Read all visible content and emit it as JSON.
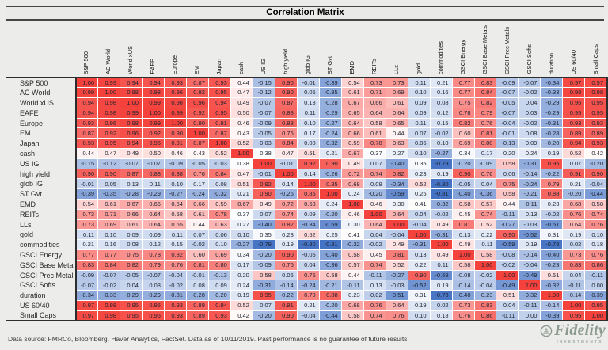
{
  "title": "Correlation Matrix",
  "footer": {
    "text": "Data source: FMRCo, Bloomberg, Haver Analytics, FactSet.  Data as of 10/11/2019. Past performance is no guarantee of future results."
  },
  "logo": {
    "brand": "Fidelity",
    "sub": "INVESTMENTS",
    "color": "#8C9A90"
  },
  "chart_data": {
    "type": "heatmap",
    "title": "Correlation Matrix",
    "legend_position": "none",
    "grid": "white-cell-borders",
    "columns": [
      "S&P 500",
      "AC World",
      "World xUS",
      "EAFE",
      "Europe",
      "EM",
      "Japan",
      "cash",
      "US IG",
      "high yield",
      "glob IG",
      "ST Gvt",
      "EMD",
      "REITs",
      "LLs",
      "gold",
      "commodities",
      "GSCI Energy",
      "GSCI Base Metals",
      "GSCI Prec Metals",
      "GSCI Softs",
      "duration",
      "US 60/40",
      "Small Caps"
    ],
    "rows": [
      "S&P 500",
      "AC World",
      "World xUS",
      "EAFE",
      "Europe",
      "EM",
      "Japan",
      "cash",
      "US IG",
      "high yield",
      "glob IG",
      "ST Gvt",
      "EMD",
      "REITs",
      "LLs",
      "gold",
      "commodities",
      "GSCI Energy",
      "GSCI Base Metal",
      "GSCI Prec Metal",
      "GSCI Softs",
      "duration",
      "US 60/40",
      "Small Caps"
    ],
    "matrix": [
      [
        1.0,
        0.99,
        0.94,
        0.94,
        0.93,
        0.87,
        0.93,
        0.44,
        -0.15,
        0.9,
        -0.01,
        -0.39,
        0.54,
        0.73,
        0.73,
        0.11,
        0.21,
        0.77,
        0.83,
        -0.09,
        -0.07,
        -0.34,
        0.97,
        0.97
      ],
      [
        0.99,
        1.0,
        0.98,
        0.98,
        0.96,
        0.92,
        0.95,
        0.47,
        -0.12,
        0.9,
        0.05,
        -0.35,
        0.61,
        0.71,
        0.69,
        0.1,
        0.16,
        0.77,
        0.84,
        -0.07,
        -0.02,
        -0.33,
        0.98,
        0.98
      ],
      [
        0.94,
        0.98,
        1.0,
        0.99,
        0.98,
        0.96,
        0.94,
        0.49,
        -0.07,
        0.87,
        0.13,
        -0.28,
        0.67,
        0.66,
        0.61,
        0.09,
        0.08,
        0.75,
        0.82,
        -0.05,
        0.04,
        -0.29,
        0.95,
        0.95
      ],
      [
        0.94,
        0.98,
        0.99,
        1.0,
        0.99,
        0.92,
        0.95,
        0.5,
        -0.07,
        0.88,
        0.11,
        -0.29,
        0.65,
        0.64,
        0.64,
        0.09,
        0.12,
        0.78,
        0.79,
        -0.07,
        0.03,
        -0.29,
        0.95,
        0.95
      ],
      [
        0.93,
        0.96,
        0.98,
        0.99,
        1.0,
        0.9,
        0.91,
        0.46,
        -0.09,
        0.88,
        0.1,
        -0.27,
        0.64,
        0.58,
        0.65,
        0.11,
        0.15,
        0.82,
        0.76,
        -0.04,
        -0.02,
        -0.31,
        0.93,
        0.93
      ],
      [
        0.87,
        0.92,
        0.96,
        0.92,
        0.9,
        1.0,
        0.87,
        0.43,
        -0.05,
        0.76,
        0.17,
        -0.24,
        0.66,
        0.61,
        0.44,
        0.07,
        -0.02,
        0.6,
        0.81,
        -0.01,
        0.08,
        -0.28,
        0.89,
        0.89
      ],
      [
        0.93,
        0.95,
        0.94,
        0.95,
        0.91,
        0.87,
        1.0,
        0.52,
        -0.03,
        0.84,
        0.08,
        -0.32,
        0.59,
        0.78,
        0.63,
        0.06,
        0.1,
        0.69,
        0.8,
        -0.13,
        0.09,
        -0.2,
        0.94,
        0.93
      ],
      [
        0.44,
        0.47,
        0.49,
        0.5,
        0.46,
        0.43,
        0.52,
        1.0,
        0.38,
        0.47,
        0.51,
        0.21,
        0.67,
        0.37,
        0.27,
        0.1,
        -0.27,
        0.34,
        0.17,
        0.2,
        0.24,
        0.19,
        0.52,
        0.42
      ],
      [
        -0.15,
        -0.12,
        -0.07,
        -0.07,
        -0.09,
        -0.05,
        -0.03,
        0.38,
        1.0,
        -0.01,
        0.92,
        0.9,
        0.49,
        0.07,
        -0.4,
        0.35,
        -0.79,
        -0.2,
        -0.09,
        0.58,
        -0.31,
        0.95,
        0.07,
        -0.2
      ],
      [
        0.9,
        0.9,
        0.87,
        0.88,
        0.88,
        0.76,
        0.84,
        0.47,
        -0.01,
        1.0,
        0.14,
        -0.26,
        0.72,
        0.74,
        0.82,
        0.23,
        0.19,
        0.9,
        0.76,
        0.06,
        -0.14,
        -0.22,
        0.91,
        0.9
      ],
      [
        -0.01,
        0.05,
        0.13,
        0.11,
        0.1,
        0.17,
        0.08,
        0.51,
        0.92,
        0.14,
        1.0,
        0.85,
        0.68,
        0.09,
        -0.34,
        0.52,
        -0.8,
        -0.05,
        0.04,
        0.75,
        -0.24,
        0.79,
        0.21,
        -0.04
      ],
      [
        -0.39,
        -0.35,
        -0.28,
        -0.29,
        -0.27,
        -0.24,
        -0.32,
        0.21,
        0.9,
        -0.26,
        0.85,
        1.0,
        0.24,
        -0.2,
        -0.59,
        0.25,
        -0.81,
        -0.4,
        -0.36,
        0.58,
        -0.21,
        0.88,
        -0.2,
        -0.44
      ],
      [
        0.54,
        0.61,
        0.67,
        0.65,
        0.64,
        0.66,
        0.59,
        0.67,
        0.49,
        0.72,
        0.68,
        0.24,
        1.0,
        0.46,
        0.3,
        0.41,
        -0.32,
        0.58,
        0.57,
        0.44,
        -0.11,
        0.23,
        0.68,
        0.58
      ],
      [
        0.73,
        0.71,
        0.66,
        0.64,
        0.58,
        0.61,
        0.78,
        0.37,
        0.07,
        0.74,
        0.09,
        -0.2,
        0.46,
        1.0,
        0.64,
        0.04,
        -0.02,
        0.45,
        0.74,
        -0.11,
        0.13,
        -0.02,
        0.76,
        0.74
      ],
      [
        0.73,
        0.69,
        0.61,
        0.64,
        0.65,
        0.44,
        0.63,
        0.27,
        -0.4,
        0.82,
        -0.34,
        -0.59,
        0.3,
        0.64,
        1.0,
        -0.04,
        0.49,
        0.81,
        0.52,
        -0.27,
        -0.03,
        -0.51,
        0.64,
        0.76
      ],
      [
        0.11,
        0.1,
        0.09,
        0.09,
        0.11,
        0.07,
        0.06,
        0.1,
        0.35,
        0.23,
        0.52,
        0.25,
        0.41,
        0.04,
        -0.04,
        1.0,
        -0.31,
        0.13,
        0.22,
        0.9,
        -0.52,
        0.31,
        0.19,
        0.1
      ],
      [
        0.21,
        0.16,
        0.08,
        0.12,
        0.15,
        -0.02,
        0.1,
        -0.27,
        -0.79,
        0.19,
        -0.8,
        -0.81,
        -0.32,
        -0.02,
        0.49,
        -0.31,
        1.0,
        0.49,
        0.11,
        -0.59,
        0.19,
        -0.78,
        0.02,
        0.18
      ],
      [
        0.77,
        0.77,
        0.75,
        0.78,
        0.82,
        0.6,
        0.69,
        0.34,
        -0.2,
        0.9,
        -0.05,
        -0.4,
        0.58,
        0.45,
        0.81,
        0.13,
        0.49,
        1.0,
        0.58,
        -0.08,
        -0.14,
        -0.4,
        0.73,
        0.76
      ],
      [
        0.83,
        0.84,
        0.82,
        0.79,
        0.76,
        0.81,
        0.8,
        0.17,
        -0.09,
        0.76,
        0.04,
        -0.36,
        0.57,
        0.74,
        0.52,
        0.22,
        0.11,
        0.58,
        1.0,
        -0.02,
        -0.04,
        -0.23,
        0.83,
        0.86
      ],
      [
        -0.09,
        -0.07,
        -0.05,
        -0.07,
        -0.04,
        -0.01,
        -0.13,
        0.2,
        0.58,
        0.06,
        0.75,
        0.58,
        0.44,
        -0.11,
        -0.27,
        0.9,
        -0.59,
        -0.08,
        -0.02,
        1.0,
        -0.49,
        0.51,
        0.04,
        -0.11
      ],
      [
        -0.07,
        -0.02,
        0.04,
        0.03,
        -0.02,
        0.08,
        0.09,
        0.24,
        -0.31,
        -0.14,
        -0.24,
        -0.21,
        -0.11,
        0.13,
        -0.03,
        -0.52,
        0.19,
        -0.14,
        -0.04,
        -0.49,
        1.0,
        -0.32,
        -0.11,
        0.0
      ],
      [
        -0.34,
        -0.33,
        -0.29,
        -0.29,
        -0.31,
        -0.28,
        -0.2,
        0.19,
        0.95,
        -0.22,
        0.79,
        0.88,
        0.23,
        -0.02,
        -0.51,
        0.31,
        -0.78,
        -0.4,
        -0.23,
        0.51,
        -0.32,
        1.0,
        -0.14,
        -0.39
      ],
      [
        0.97,
        0.98,
        0.95,
        0.95,
        0.93,
        0.89,
        0.94,
        0.52,
        0.07,
        0.91,
        0.21,
        -0.2,
        0.68,
        0.76,
        0.64,
        0.19,
        0.02,
        0.73,
        0.83,
        0.04,
        -0.11,
        -0.14,
        1.0,
        0.95
      ],
      [
        0.97,
        0.98,
        0.95,
        0.95,
        0.93,
        0.89,
        0.93,
        0.42,
        -0.2,
        0.9,
        -0.04,
        -0.44,
        0.58,
        0.74,
        0.76,
        0.1,
        0.18,
        0.76,
        0.86,
        -0.11,
        0.0,
        -0.39,
        0.95,
        1.0
      ]
    ],
    "color_scale": {
      "min": -0.81,
      "mid": 0.4,
      "max": 1.0,
      "min_color": "#4472C4",
      "mid_color": "#FFFFFF",
      "max_color": "#F5413B"
    },
    "value_format": "0.00"
  }
}
